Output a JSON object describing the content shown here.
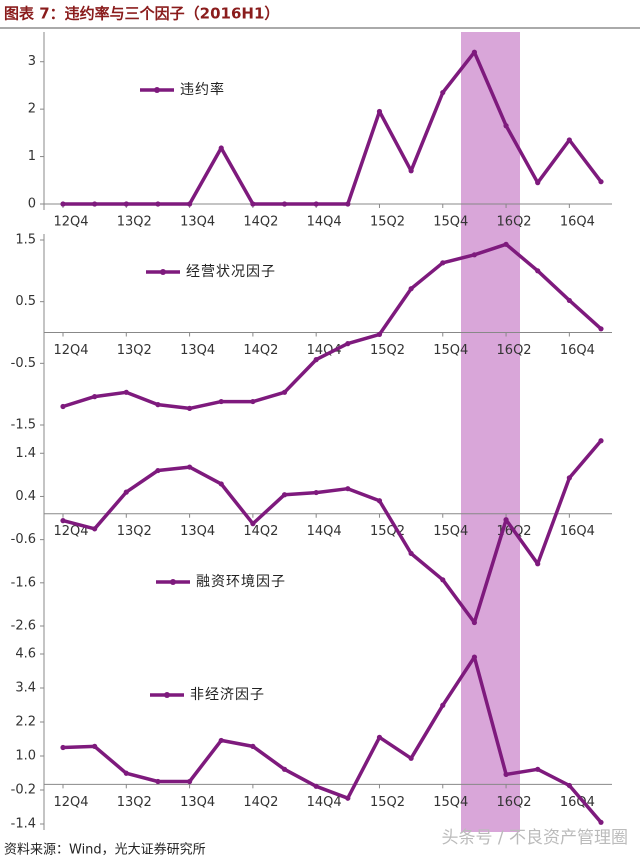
{
  "title": "图表 7：违约率与三个因子（2016H1）",
  "source": "资料来源：Wind，光大证券研究所",
  "watermark": "头条号 / 不良资产管理圈",
  "chart_data": [
    {
      "type": "line",
      "categories": [
        "12Q4",
        null,
        "13Q2",
        null,
        "13Q4",
        null,
        "14Q2",
        null,
        "14Q4",
        null,
        "15Q2",
        null,
        "15Q4",
        null,
        "16Q2",
        null,
        "16Q4",
        null
      ],
      "series": [
        {
          "name": "违约率",
          "color": "#7e1a7d",
          "values": [
            0,
            0,
            0,
            0,
            0,
            1.18,
            0,
            0,
            0,
            0,
            1.95,
            0.7,
            2.35,
            3.2,
            1.65,
            0.45,
            1.35,
            0.47
          ]
        }
      ],
      "ylim": [
        0,
        3.5
      ],
      "yticks": [
        0,
        1,
        2,
        3
      ]
    },
    {
      "type": "line",
      "categories": [
        "12Q4",
        null,
        "13Q2",
        null,
        "13Q4",
        null,
        "14Q2",
        null,
        "14Q4",
        null,
        "15Q2",
        null,
        "15Q4",
        null,
        "16Q2",
        null,
        "16Q4",
        null
      ],
      "series": [
        {
          "name": "经营状况因子",
          "color": "#7e1a7d",
          "values": [
            -1.2,
            -1.04,
            -0.97,
            -1.17,
            -1.23,
            -1.12,
            -1.12,
            -0.97,
            -0.44,
            -0.18,
            -0.03,
            0.71,
            1.13,
            1.26,
            1.43,
            1.0,
            0.52,
            0.06
          ]
        }
      ],
      "ylim": [
        -1.5,
        1.5
      ],
      "yticks": [
        1.5,
        0.5,
        -0.5,
        -1.5
      ]
    },
    {
      "type": "line",
      "categories": [
        "12Q4",
        null,
        "13Q2",
        null,
        "13Q4",
        null,
        "14Q2",
        null,
        "14Q4",
        null,
        "15Q2",
        null,
        "15Q4",
        null,
        "16Q2",
        null,
        "16Q4",
        null
      ],
      "series": [
        {
          "name": "融资环境因子",
          "color": "#7e1a7d",
          "values": [
            -0.16,
            -0.35,
            0.5,
            1.0,
            1.08,
            0.69,
            -0.23,
            0.44,
            0.49,
            0.58,
            0.3,
            -0.92,
            -1.53,
            -2.52,
            -0.14,
            -1.16,
            0.83,
            1.69
          ]
        }
      ],
      "ylim": [
        -2.6,
        1.8
      ],
      "yticks": [
        1.4,
        0.4,
        -0.6,
        -1.6,
        -2.6
      ]
    },
    {
      "type": "line",
      "categories": [
        "12Q4",
        null,
        "13Q2",
        null,
        "13Q4",
        null,
        "14Q2",
        null,
        "14Q4",
        null,
        "15Q2",
        null,
        "15Q4",
        null,
        "16Q2",
        null,
        "16Q4",
        null
      ],
      "series": [
        {
          "name": "非经济因子",
          "color": "#7e1a7d",
          "values": [
            1.3,
            1.34,
            0.39,
            0.1,
            0.1,
            1.55,
            1.34,
            0.53,
            -0.07,
            -0.49,
            1.66,
            0.92,
            2.79,
            4.49,
            0.35,
            0.53,
            -0.04,
            -1.34
          ]
        }
      ],
      "ylim": [
        -1.4,
        5.2
      ],
      "yticks": [
        4.6,
        3.4,
        2.2,
        {
          "value": 1,
          "label": "1.0"
        },
        -0.2,
        -1.4
      ]
    }
  ]
}
